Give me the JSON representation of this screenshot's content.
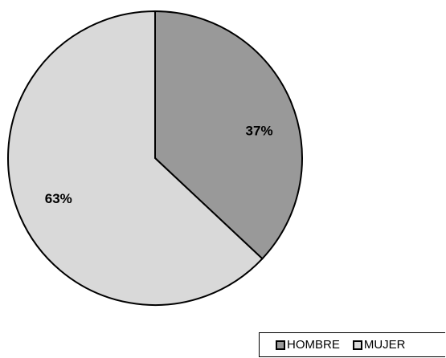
{
  "chart_data": {
    "type": "pie",
    "slices": [
      {
        "label": "HOMBRE",
        "value": 37,
        "display": "37%",
        "color": "#999999"
      },
      {
        "label": "MUJER",
        "value": 63,
        "display": "63%",
        "color": "#d9d9d9"
      }
    ],
    "legend_position": "bottom-right"
  }
}
